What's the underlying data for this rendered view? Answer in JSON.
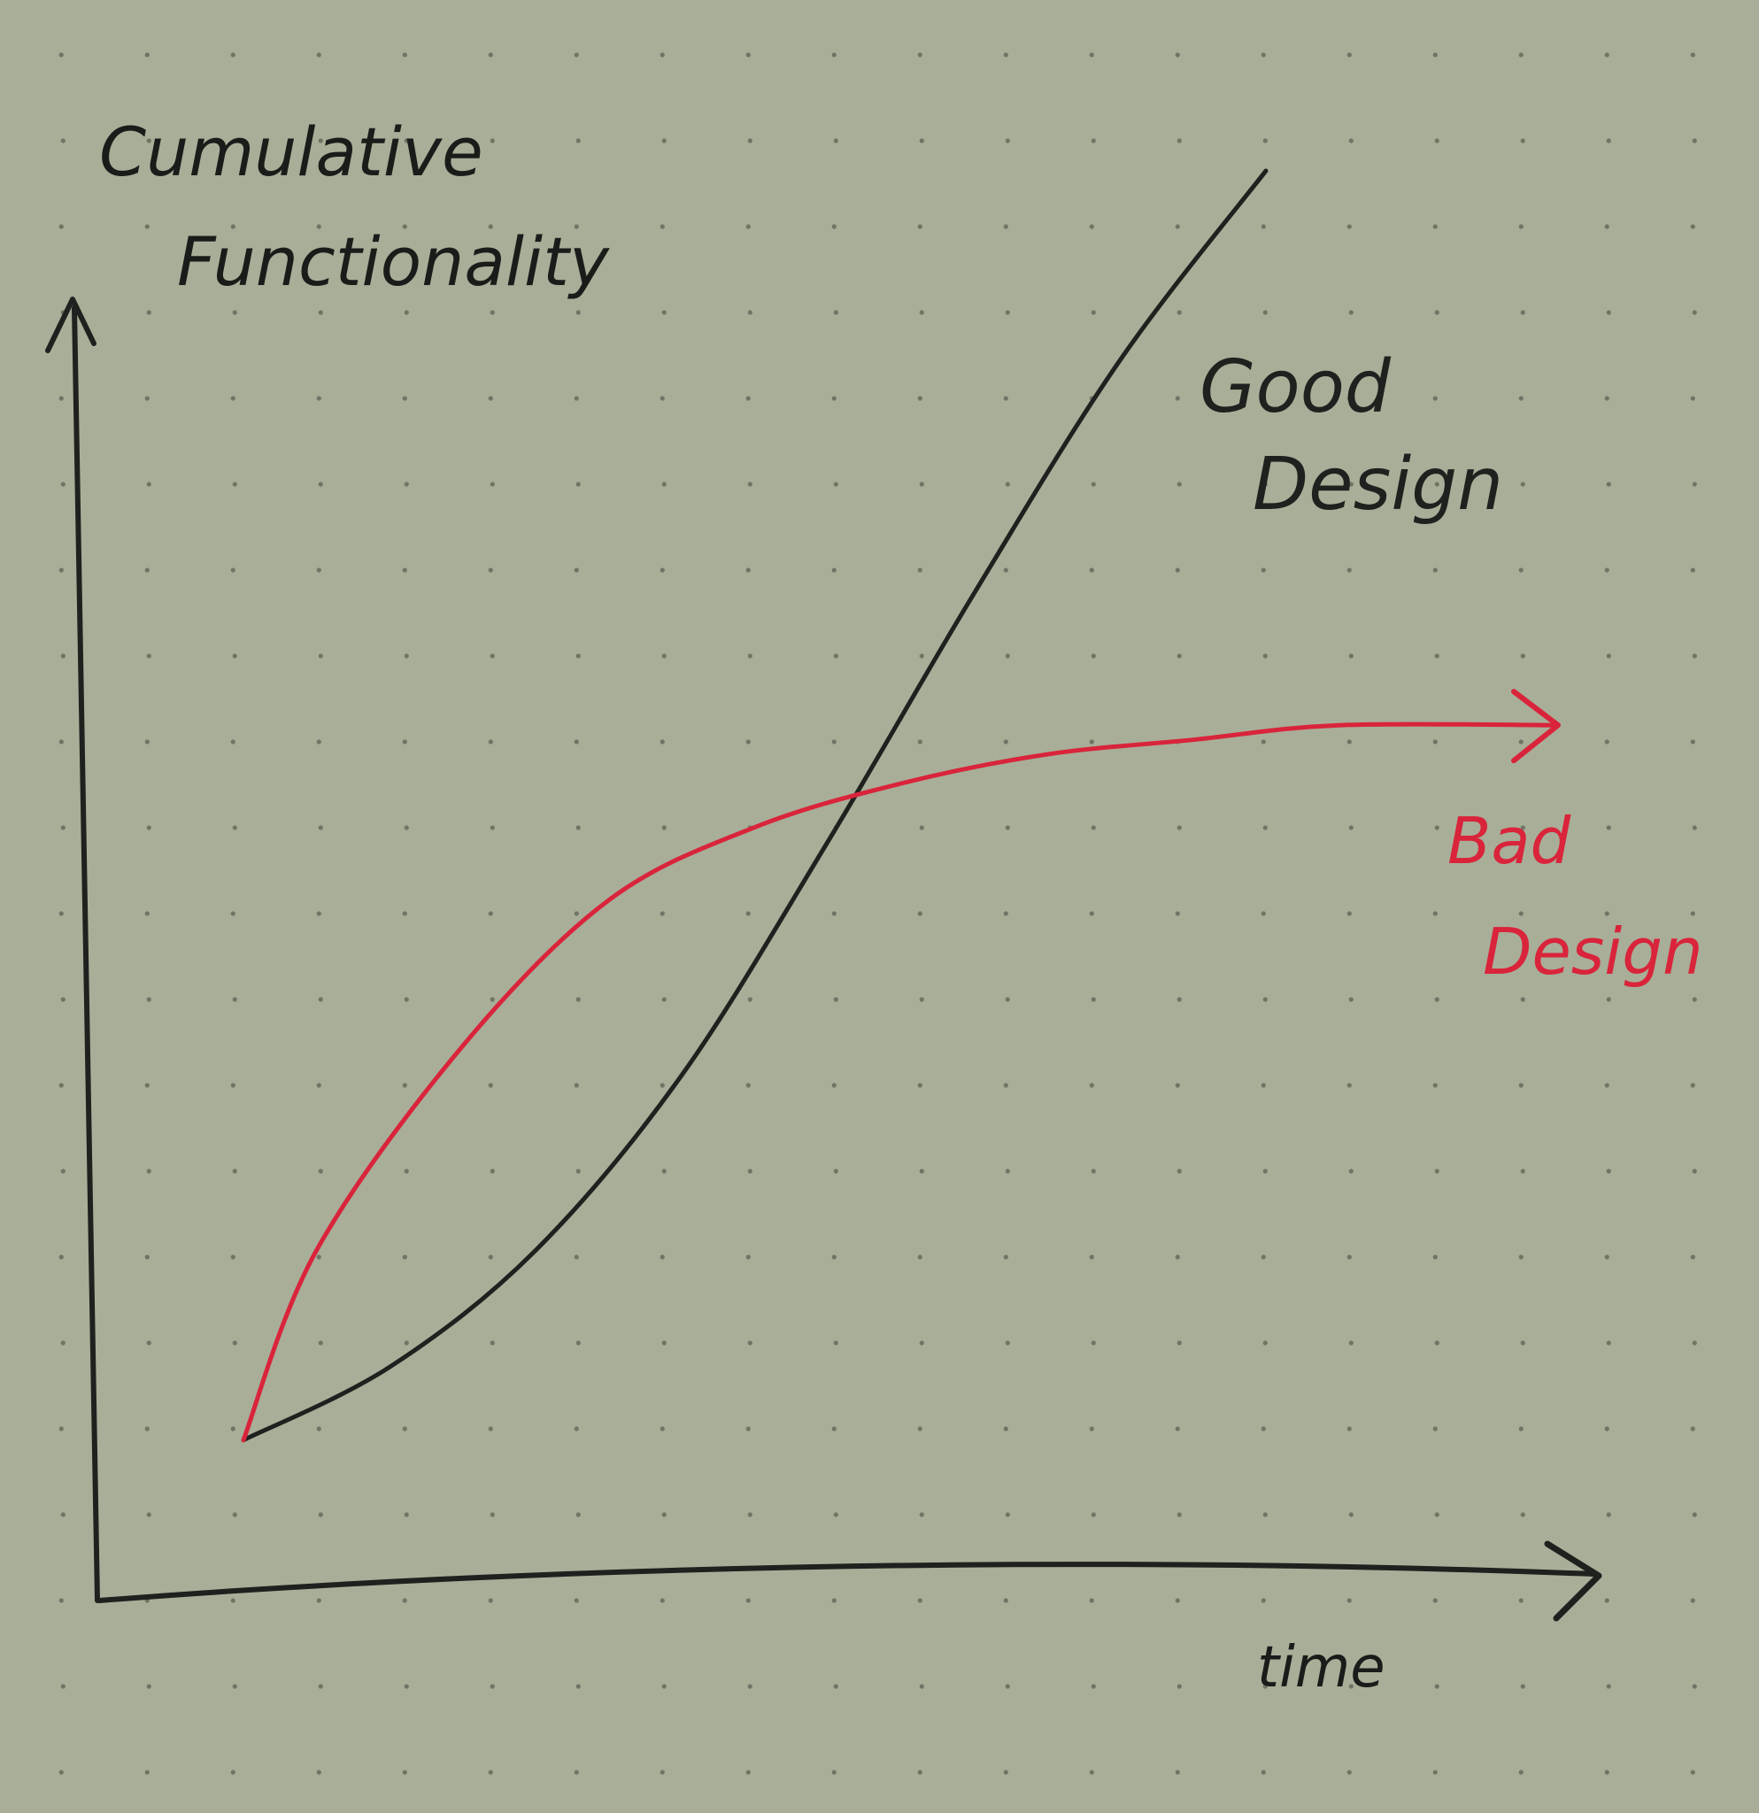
{
  "page": {
    "background_color": "#a9ae98",
    "dot_color": "#6f7566"
  },
  "chart_data": {
    "type": "line",
    "title": "",
    "xlabel": "time",
    "ylabel": "Cumulative Functionality",
    "grid": false,
    "x_ticks": "none",
    "y_ticks": "none",
    "xlim": [
      0,
      10
    ],
    "ylim": [
      0,
      10
    ],
    "series": [
      {
        "name": "Good Design",
        "color": "#1f211f",
        "values_x": [
          1.0,
          2.0,
          3.0,
          4.0,
          5.0,
          6.0,
          7.0,
          8.0
        ],
        "values_y": [
          1.1,
          1.6,
          2.4,
          3.6,
          5.2,
          6.9,
          8.5,
          9.8
        ]
      },
      {
        "name": "Bad Design",
        "color": "#d9243b",
        "arrow_end": true,
        "values_x": [
          1.0,
          1.5,
          2.5,
          3.5,
          4.5,
          5.5,
          6.5,
          7.5,
          8.5,
          10.0
        ],
        "values_y": [
          1.1,
          2.4,
          3.8,
          4.8,
          5.3,
          5.6,
          5.8,
          5.9,
          6.0,
          6.0
        ]
      }
    ]
  }
}
